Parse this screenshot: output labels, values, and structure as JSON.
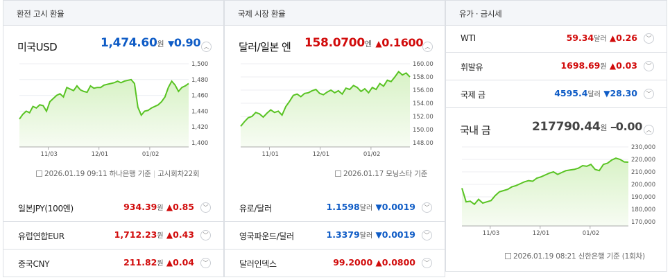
{
  "sections": {
    "exchange": {
      "tab": "환전 고시 환율",
      "main": {
        "name": "미국USD",
        "price": "1,474.60",
        "unit": "원",
        "dir": "down",
        "arrow": "▼",
        "change": "0.90"
      },
      "chart_ticks_y": [
        "1,500",
        "1,480",
        "1,460",
        "1,440",
        "1,420",
        "1,400"
      ],
      "chart_ticks_x": [
        "11/03",
        "12/01",
        "01/02"
      ],
      "footer": {
        "datetime": "2026.01.19 09:11",
        "source": "하나은행 기준",
        "round": "고시회차22회"
      },
      "rows": [
        {
          "name": "일본JPY(100엔)",
          "price": "934.39",
          "unit": "원",
          "arrow": "▲",
          "change": "0.85",
          "dir": "up"
        },
        {
          "name": "유럽연합EUR",
          "price": "1,712.23",
          "unit": "원",
          "arrow": "▲",
          "change": "0.43",
          "dir": "up"
        },
        {
          "name": "중국CNY",
          "price": "211.82",
          "unit": "원",
          "arrow": "▲",
          "change": "0.04",
          "dir": "up"
        }
      ]
    },
    "intl": {
      "tab": "국제 시장 환율",
      "main": {
        "name": "달러/일본 엔",
        "price": "158.0700",
        "unit": "엔",
        "dir": "up",
        "arrow": "▲",
        "change": "0.1600"
      },
      "chart_ticks_y": [
        "160.00",
        "158.00",
        "156.00",
        "154.00",
        "152.00",
        "150.00",
        "148.00"
      ],
      "chart_ticks_x": [
        "11/01",
        "12/01",
        "01/02"
      ],
      "footer": {
        "datetime": "2026.01.17",
        "source": "모닝스타 기준"
      },
      "rows": [
        {
          "name": "유로/달러",
          "price": "1.1598",
          "unit": "달러",
          "arrow": "▼",
          "change": "0.0019",
          "dir": "down"
        },
        {
          "name": "영국파운드/달러",
          "price": "1.3379",
          "unit": "달러",
          "arrow": "▼",
          "change": "0.0019",
          "dir": "down"
        },
        {
          "name": "달러인덱스",
          "price": "99.2000",
          "unit": "",
          "arrow": "▲",
          "change": "0.0800",
          "dir": "up"
        }
      ]
    },
    "commodity": {
      "tab": "유가 · 금시세",
      "rows": [
        {
          "name": "WTI",
          "price": "59.34",
          "unit": "달러",
          "arrow": "▲",
          "change": "0.26",
          "dir": "up"
        },
        {
          "name": "휘발유",
          "price": "1698.69",
          "unit": "원",
          "arrow": "▲",
          "change": "0.03",
          "dir": "up"
        },
        {
          "name": "국제 금",
          "price": "4595.4",
          "unit": "달러",
          "arrow": "▼",
          "change": "28.30",
          "dir": "down"
        }
      ],
      "main": {
        "name": "국내 금",
        "price": "217790.44",
        "unit": "원",
        "dir": "flat",
        "arrow": "━",
        "change": "0.00"
      },
      "chart_ticks_y": [
        "230,000",
        "220,000",
        "210,000",
        "200,000",
        "190,000",
        "180,000",
        "170,000"
      ],
      "chart_ticks_x": [
        "11/03",
        "12/01",
        "01/02"
      ],
      "footer": {
        "datetime": "2026.01.19 08:21",
        "source": "신한은행 기준",
        "round": "(1회차)"
      }
    }
  },
  "icons": {
    "toggle": "chevron-up-icon",
    "row_toggle": "chevron-down-icon",
    "footer": "document-icon"
  },
  "colors": {
    "up": "#d10b0b",
    "down": "#0f5cc6",
    "chart_line": "#58c322",
    "chart_fill": "#d8f2c6"
  },
  "chart_data": [
    {
      "type": "area",
      "series": [
        {
          "values": [
            1430,
            1436,
            1440,
            1438,
            1446,
            1444,
            1448,
            1447,
            1440,
            1452,
            1456,
            1460,
            1462,
            1458,
            1470,
            1468,
            1466,
            1472,
            1467,
            1465,
            1464,
            1472,
            1469,
            1470,
            1470,
            1473,
            1474,
            1475,
            1476,
            1478,
            1476,
            1478,
            1479,
            1480,
            1475,
            1445,
            1435,
            1440,
            1441,
            1444,
            1446,
            1448,
            1452,
            1458,
            1470,
            1478,
            1473,
            1465,
            1470,
            1472,
            1475
          ]
        }
      ],
      "x_ticks": [
        "11/03",
        "12/01",
        "01/02"
      ],
      "ylim": [
        1400,
        1500
      ]
    },
    {
      "type": "area",
      "series": [
        {
          "values": [
            150.5,
            151.2,
            151.8,
            152.0,
            152.6,
            152.4,
            151.9,
            152.5,
            153.0,
            152.6,
            152.8,
            152.2,
            153.5,
            154.3,
            155.2,
            155.4,
            155.0,
            155.5,
            155.6,
            155.9,
            156.1,
            155.5,
            155.3,
            155.7,
            156.0,
            155.6,
            155.9,
            155.4,
            156.3,
            156.1,
            156.7,
            156.4,
            155.8,
            156.2,
            155.6,
            156.4,
            156.1,
            157.0,
            156.6,
            157.5,
            157.3,
            158.0,
            158.8,
            158.3,
            158.6,
            158.0
          ]
        }
      ],
      "x_ticks": [
        "11/01",
        "12/01",
        "01/02"
      ],
      "ylim": [
        148,
        160
      ]
    },
    {
      "type": "area",
      "series": [
        {
          "values": [
            197000,
            186000,
            186500,
            184000,
            188000,
            185000,
            186000,
            187000,
            191000,
            194000,
            195000,
            196000,
            198000,
            199000,
            200500,
            202000,
            203000,
            202500,
            205000,
            206000,
            207500,
            209000,
            210000,
            208000,
            209500,
            211000,
            211500,
            212000,
            213000,
            215000,
            214500,
            216000,
            212000,
            211000,
            216000,
            217000,
            219500,
            221000,
            220000,
            218000,
            217790
          ]
        }
      ],
      "x_ticks": [
        "11/03",
        "12/01",
        "01/02"
      ],
      "ylim": [
        170000,
        230000
      ]
    }
  ]
}
